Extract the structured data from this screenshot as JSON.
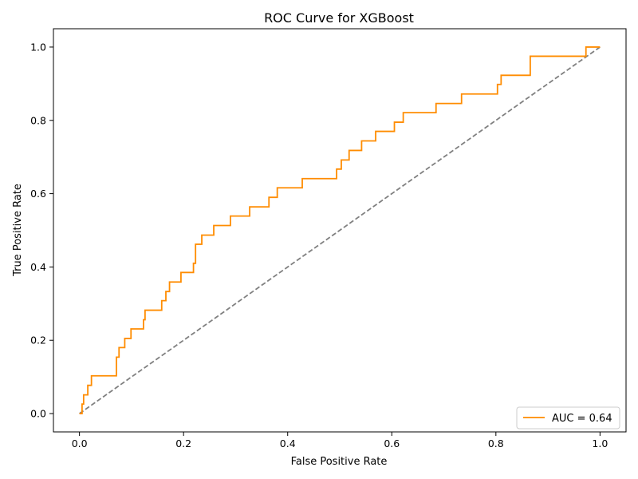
{
  "chart_data": {
    "type": "line",
    "title": "ROC Curve for XGBoost",
    "xlabel": "False Positive Rate",
    "ylabel": "True Positive Rate",
    "xlim": [
      -0.05,
      1.05
    ],
    "ylim": [
      -0.05,
      1.05
    ],
    "x_ticks": [
      "0.0",
      "0.2",
      "0.4",
      "0.6",
      "0.8",
      "1.0"
    ],
    "y_ticks": [
      "0.0",
      "0.2",
      "0.4",
      "0.6",
      "0.8",
      "1.0"
    ],
    "grid": false,
    "legend_position": "lower right",
    "colors": {
      "roc": "#ff8c00",
      "baseline": "#808080"
    },
    "series": [
      {
        "name": "AUC = 0.64",
        "style": "solid-step",
        "x": [
          0.0,
          0.0,
          0.005,
          0.005,
          0.008,
          0.008,
          0.016,
          0.016,
          0.023,
          0.023,
          0.071,
          0.071,
          0.076,
          0.076,
          0.087,
          0.087,
          0.099,
          0.099,
          0.123,
          0.123,
          0.126,
          0.126,
          0.158,
          0.158,
          0.166,
          0.166,
          0.173,
          0.173,
          0.195,
          0.195,
          0.219,
          0.219,
          0.223,
          0.223,
          0.235,
          0.235,
          0.258,
          0.258,
          0.29,
          0.29,
          0.327,
          0.327,
          0.364,
          0.364,
          0.38,
          0.38,
          0.428,
          0.428,
          0.494,
          0.494,
          0.503,
          0.503,
          0.518,
          0.518,
          0.542,
          0.542,
          0.569,
          0.569,
          0.605,
          0.605,
          0.622,
          0.622,
          0.685,
          0.685,
          0.734,
          0.734,
          0.803,
          0.803,
          0.81,
          0.81,
          0.866,
          0.866,
          0.973,
          0.973,
          1.0
        ],
        "y": [
          0.0,
          0.0,
          0.0,
          0.026,
          0.026,
          0.051,
          0.051,
          0.077,
          0.077,
          0.103,
          0.103,
          0.154,
          0.154,
          0.18,
          0.18,
          0.205,
          0.205,
          0.231,
          0.231,
          0.256,
          0.256,
          0.282,
          0.282,
          0.308,
          0.308,
          0.333,
          0.333,
          0.359,
          0.359,
          0.385,
          0.385,
          0.41,
          0.41,
          0.462,
          0.462,
          0.487,
          0.487,
          0.513,
          0.513,
          0.539,
          0.539,
          0.564,
          0.564,
          0.59,
          0.59,
          0.616,
          0.616,
          0.641,
          0.641,
          0.667,
          0.667,
          0.692,
          0.692,
          0.718,
          0.718,
          0.744,
          0.744,
          0.77,
          0.77,
          0.795,
          0.795,
          0.821,
          0.821,
          0.846,
          0.846,
          0.872,
          0.872,
          0.898,
          0.898,
          0.923,
          0.923,
          0.975,
          0.975,
          1.0,
          1.0
        ]
      },
      {
        "style": "dashed",
        "x": [
          0,
          1
        ],
        "y": [
          0,
          1
        ]
      }
    ]
  }
}
